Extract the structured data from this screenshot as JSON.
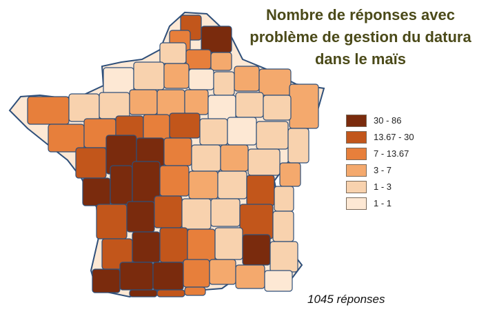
{
  "title_lines": [
    "Nombre de réponses avec",
    "problème de gestion du datura",
    "dans le maïs"
  ],
  "legend": [
    {
      "label": "30 - 86",
      "color": "#7a2b0d"
    },
    {
      "label": "13.67 - 30",
      "color": "#c2561b"
    },
    {
      "label": "7 - 13.67",
      "color": "#e77f3b"
    },
    {
      "label": "3 - 7",
      "color": "#f4a96d"
    },
    {
      "label": "1 - 3",
      "color": "#f8d2ae"
    },
    {
      "label": "1 - 1",
      "color": "#fde8d4"
    }
  ],
  "total_text": "1045 réponses",
  "colors": {
    "title": "#4b4a19",
    "no_data": "#ffffff",
    "border": "#2e4f7a"
  }
}
